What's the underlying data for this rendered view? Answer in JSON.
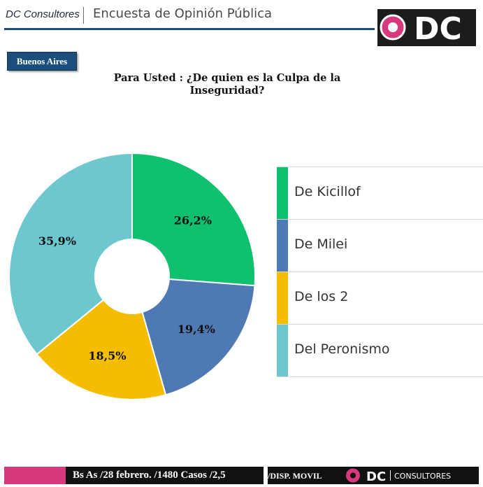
{
  "header": {
    "brand": "DC Consultores",
    "title": "Encuesta de Opinión Pública",
    "logo_text": "DC"
  },
  "region_tag": "Buenos Aires",
  "chart_data": {
    "type": "pie",
    "title": "Para Usted : ¿De quien es la Culpa de la Inseguridad?",
    "slices": [
      {
        "label": "De Kicillof",
        "value": 26.2,
        "display": "26,2%",
        "color": "#0fc06e"
      },
      {
        "label": "De Milei",
        "value": 19.4,
        "display": "19,4%",
        "color": "#4f79b4"
      },
      {
        "label": "De los 2",
        "value": 18.5,
        "display": "18,5%",
        "color": "#f5bd00"
      },
      {
        "label": "Del Peronismo",
        "value": 35.9,
        "display": "35,9%",
        "color": "#6cc7ce"
      }
    ],
    "donut": true
  },
  "footer": {
    "left_text": "Bs As /28 febrero. /1480 Casos /2,5",
    "right_text": "/DISP. MOVIL",
    "logo_text": "DC",
    "logo_sub": "CONSULTORES",
    "accent": "#d63a7c"
  }
}
